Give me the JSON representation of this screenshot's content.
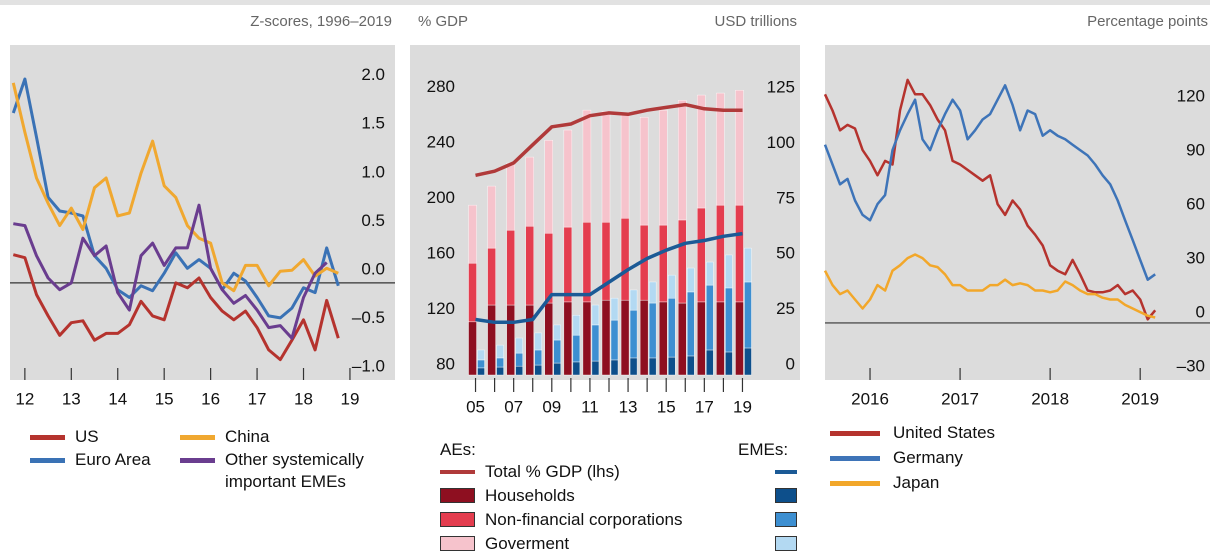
{
  "chart_data": [
    {
      "type": "line",
      "ylabel": "Z-scores, 1996–2019",
      "x": [
        12.25,
        12.5,
        12.75,
        13,
        13.25,
        13.5,
        13.75,
        14,
        14.25,
        14.5,
        14.75,
        15,
        15.25,
        15.5,
        15.75,
        16,
        16.25,
        16.5,
        16.75,
        17,
        17.25,
        17.5,
        17.75,
        18,
        18.25,
        18.5,
        18.75,
        19,
        19.25
      ],
      "xlim": [
        12.18,
        20.47
      ],
      "xticks": [
        {
          "value": 12.5,
          "label": "12"
        },
        {
          "value": 13.5,
          "label": "13"
        },
        {
          "value": 14.5,
          "label": "14"
        },
        {
          "value": 15.5,
          "label": "15"
        },
        {
          "value": 16.5,
          "label": "16"
        },
        {
          "value": 17.5,
          "label": "17"
        },
        {
          "value": 18.5,
          "label": "18"
        },
        {
          "value": 19.5,
          "label": "19"
        }
      ],
      "ylim": [
        -1.0,
        2.45
      ],
      "yticks": [
        {
          "value": 2,
          "label": "2.0"
        },
        1.5,
        {
          "value": 1,
          "label": "1.0"
        },
        0.5,
        {
          "value": 0,
          "label": "0.0"
        },
        {
          "value": -0.5,
          "label": "–0.5"
        },
        {
          "value": -1,
          "label": "–1.0"
        }
      ],
      "series": [
        {
          "name": "US",
          "color": "#b5332e",
          "values": [
            0.29,
            0.26,
            -0.12,
            -0.34,
            -0.54,
            -0.41,
            -0.39,
            -0.59,
            -0.52,
            -0.52,
            -0.43,
            -0.19,
            -0.34,
            -0.38,
            0,
            -0.05,
            0.05,
            -0.15,
            -0.29,
            -0.38,
            -0.29,
            -0.46,
            -0.69,
            -0.79,
            -0.59,
            -0.38,
            -0.69,
            -0.18,
            -0.57
          ]
        },
        {
          "name": "Euro Area",
          "color": "#3a72b5",
          "values": [
            1.75,
            2.1,
            1.5,
            0.88,
            0.74,
            0.72,
            0.69,
            0.28,
            0.15,
            -0.07,
            -0.15,
            -0.03,
            -0.08,
            0.1,
            0.31,
            0.15,
            0.24,
            0.15,
            -0.07,
            0.1,
            0.02,
            -0.15,
            -0.34,
            -0.36,
            -0.26,
            -0.05,
            -0.1,
            0.36,
            -0.03
          ]
        },
        {
          "name": "China",
          "color": "#f0a830",
          "values": [
            2.06,
            1.55,
            1.08,
            0.82,
            0.59,
            0.77,
            0.55,
            0.98,
            1.08,
            0.69,
            0.72,
            1.13,
            1.46,
            1.0,
            0.88,
            0.59,
            0.46,
            0.41,
            0,
            -0.08,
            0.18,
            0.18,
            -0.03,
            0.12,
            0.13,
            0.24,
            0.07,
            0.15,
            0.1
          ]
        },
        {
          "name": "Other systemically important EMEs",
          "color": "#6a3d8f",
          "values": [
            0.61,
            0.59,
            0.28,
            0.05,
            -0.07,
            0,
            0.46,
            0.28,
            0.38,
            -0.1,
            -0.28,
            0.28,
            0.41,
            0.18,
            0.36,
            0.36,
            0.8,
            0.15,
            -0.07,
            -0.21,
            -0.13,
            -0.28,
            -0.46,
            -0.44,
            -0.57,
            -0.15,
            0.1,
            0.21,
            null
          ]
        }
      ]
    },
    {
      "type": "bar",
      "ylabel": "% GDP",
      "y2label": "USD trillions",
      "categories": [
        "05",
        null,
        "07",
        null,
        "09",
        null,
        "11",
        null,
        "13",
        null,
        "15",
        null,
        "17",
        null,
        "19"
      ],
      "ylim": [
        80,
        318
      ],
      "yticks": [
        80,
        120,
        160,
        200,
        240,
        280
      ],
      "y2lim": [
        0,
        149
      ],
      "y2ticks": [
        0,
        25,
        50,
        75,
        100,
        125
      ],
      "groups": [
        "AEs:",
        "EMEs:"
      ],
      "series": [
        {
          "name": "Total % GDP (lhs)",
          "type": "line",
          "colors": [
            "#b03a3a",
            "#1b5a96"
          ],
          "values": [
            [
              224,
              227,
              233,
              246,
              259,
              261,
              267,
              269,
              268,
              271,
              273,
              275,
              272,
              271,
              271
            ],
            [
              120,
              118,
              118,
              120,
              138,
              138,
              138,
              147,
              156,
              164,
              170,
              175,
              177,
              180,
              182
            ]
          ]
        },
        {
          "name": "Households",
          "axis": "y2",
          "colors": [
            "#8e0f20",
            "#0d4f8b"
          ],
          "values": [
            [
              24,
              31.6,
              31.6,
              31.6,
              32.5,
              33,
              33,
              33.8,
              33.8,
              33.8,
              33,
              32.5,
              33,
              33,
              33
            ],
            [
              3.2,
              3.6,
              4,
              4.5,
              5.4,
              5.9,
              6.3,
              6.8,
              7.7,
              7.7,
              8.1,
              8.6,
              11.3,
              10.4,
              12.2
            ]
          ]
        },
        {
          "name": "Non-financial corporations",
          "axis": "y2",
          "colors": [
            "#e43d4f",
            "#3d8fd1"
          ],
          "values": [
            [
              26.5,
              25.7,
              33.8,
              35.6,
              31.5,
              33.8,
              36,
              35.2,
              37,
              33.9,
              34.7,
              37.5,
              42.4,
              43.7,
              43.7
            ],
            [
              3.6,
              4.1,
              5.9,
              6.8,
              10.4,
              12.1,
              16.3,
              18,
              21.6,
              24.8,
              26.6,
              28.9,
              29.3,
              28.9,
              29.8
            ]
          ]
        },
        {
          "name": "Goverment",
          "axis": "y2",
          "colors": [
            "#f6c3cc",
            "#b3d9f2"
          ],
          "values": [
            [
              26.2,
              28,
              30.3,
              31.2,
              42,
              43.8,
              50.6,
              50,
              47.2,
              48.7,
              51.9,
              54,
              51,
              50.6,
              51.9
            ],
            [
              4.5,
              5.8,
              6.8,
              7.7,
              6.8,
              9,
              9,
              9.9,
              9.1,
              9.5,
              10.4,
              10.8,
              10.4,
              14.9,
              15.3
            ]
          ]
        }
      ]
    },
    {
      "type": "line",
      "ylabel": "Percentage points",
      "x": [
        2016,
        2016.083,
        2016.167,
        2016.25,
        2016.333,
        2016.417,
        2016.5,
        2016.583,
        2016.667,
        2016.75,
        2016.833,
        2016.917,
        2017,
        2017.083,
        2017.167,
        2017.25,
        2017.333,
        2017.417,
        2017.5,
        2017.583,
        2017.667,
        2017.75,
        2017.833,
        2017.917,
        2018,
        2018.083,
        2018.167,
        2018.25,
        2018.333,
        2018.417,
        2018.5,
        2018.583,
        2018.667,
        2018.75,
        2018.833,
        2018.917,
        2019,
        2019.083,
        2019.167,
        2019.25,
        2019.333,
        2019.417,
        2019.5,
        2019.583,
        2019.667
      ],
      "xlim": [
        2016,
        2019.72
      ],
      "xticks": [
        {
          "value": 2016.5,
          "label": "2016"
        },
        {
          "value": 2017.5,
          "label": "2017"
        },
        {
          "value": 2018.5,
          "label": "2018"
        },
        {
          "value": 2019.5,
          "label": "2019"
        }
      ],
      "ylim": [
        -31.7,
        154.4
      ],
      "yticks": [
        120,
        90,
        60,
        30,
        0,
        {
          "value": -30,
          "label": "–30"
        }
      ],
      "series": [
        {
          "name": "United States",
          "color": "#b5332e",
          "values": [
            127,
            118,
            107,
            110,
            108,
            96,
            90,
            82,
            90,
            88,
            118,
            135,
            127,
            127,
            121,
            113,
            107,
            90,
            88,
            85,
            82,
            79,
            82,
            66,
            60,
            68,
            63,
            54,
            49,
            43,
            32,
            29,
            27,
            35,
            27,
            18,
            17,
            17,
            18,
            21,
            16,
            18,
            13,
            2,
            7
          ]
        },
        {
          "name": "Germany",
          "color": "#3e74b8",
          "values": [
            99,
            88,
            77,
            80,
            68,
            60,
            57,
            66,
            71,
            96,
            107,
            116,
            124,
            102,
            96,
            107,
            116,
            124,
            118,
            102,
            107,
            113,
            116,
            124,
            132,
            121,
            107,
            118,
            116,
            104,
            107,
            104,
            102,
            99,
            96,
            93,
            88,
            82,
            77,
            68,
            57,
            46,
            35,
            24,
            27
          ]
        },
        {
          "name": "Japan",
          "color": "#f2a72a",
          "values": [
            29,
            21,
            16,
            18,
            13,
            8,
            13,
            21,
            18,
            29,
            32,
            36,
            38,
            36,
            32,
            31,
            27,
            21,
            21,
            18,
            18,
            18,
            21,
            21,
            24,
            21,
            22,
            21,
            18,
            18,
            17,
            18,
            23,
            21,
            18,
            16,
            16,
            14,
            13,
            13,
            10,
            8,
            6,
            4,
            3
          ]
        }
      ]
    }
  ]
}
